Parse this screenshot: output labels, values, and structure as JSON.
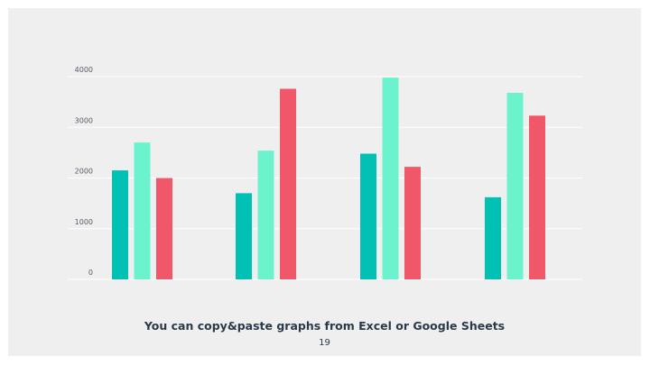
{
  "slide": {
    "caption": "You can copy&paste graphs from Excel or Google Sheets",
    "page_number": "19"
  },
  "chart_data": {
    "type": "bar",
    "categories": [
      "",
      "",
      "",
      ""
    ],
    "series": [
      {
        "values": [
          2150,
          1700,
          2480,
          1620
        ],
        "color": "#00c1b3"
      },
      {
        "values": [
          2700,
          2540,
          3980,
          3680
        ],
        "color": "#6bf3cd"
      },
      {
        "values": [
          2000,
          3760,
          2220,
          3230
        ],
        "color": "#f0586a"
      }
    ],
    "yticks": [
      "0",
      "1000",
      "2000",
      "3000",
      "4000"
    ],
    "ylim": [
      0,
      4000
    ],
    "grid": true,
    "title": "",
    "xlabel": "",
    "ylabel": ""
  }
}
